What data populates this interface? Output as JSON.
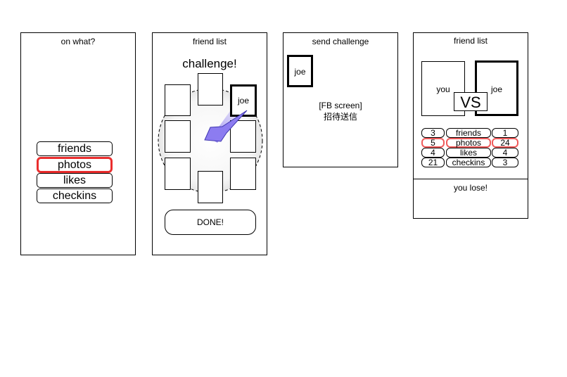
{
  "screen1": {
    "title": "on what?",
    "options": [
      "friends",
      "photos",
      "likes",
      "checkins"
    ],
    "selected_index": 1
  },
  "screen2": {
    "title": "friend list",
    "heading": "challenge!",
    "active_friend": "joe",
    "done_label": "DONE!"
  },
  "screen3": {
    "title": "send challenge",
    "friend": "joe",
    "fb_screen_label": "[FB screen]",
    "invite_label": "招待送信"
  },
  "screen4": {
    "title": "friend list",
    "you_label": "you",
    "opponent_label": "joe",
    "vs_label": "VS",
    "rows": [
      {
        "you": "3",
        "category": "friends",
        "opponent": "1",
        "highlighted": false
      },
      {
        "you": "5",
        "category": "photos",
        "opponent": "24",
        "highlighted": true
      },
      {
        "you": "4",
        "category": "likes",
        "opponent": "4",
        "highlighted": false
      },
      {
        "you": "21",
        "category": "checkins",
        "opponent": "3",
        "highlighted": false
      }
    ],
    "result": "you lose!"
  },
  "colors": {
    "highlight": "#ea2e2e",
    "arrow": "#8c7cf0"
  }
}
